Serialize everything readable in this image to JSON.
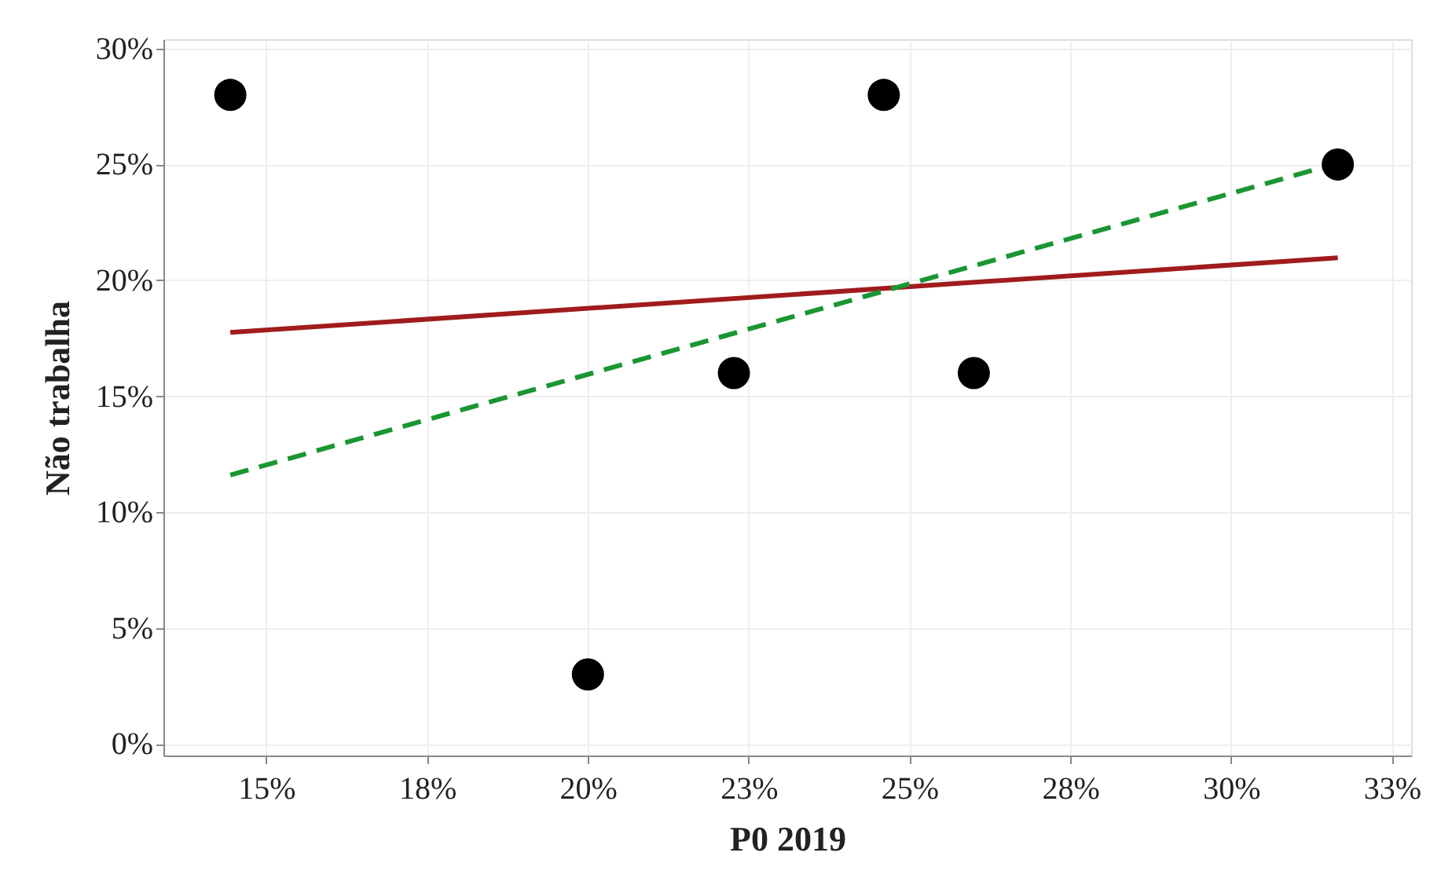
{
  "chart_data": {
    "type": "scatter",
    "xlabel": "P0 2019",
    "ylabel": "Não trabalha",
    "xlim": [
      13.4,
      32.8
    ],
    "ylim": [
      -0.5,
      30.4
    ],
    "xticks": [
      {
        "value": 15,
        "label": "15%"
      },
      {
        "value": 17.5,
        "label": "18%"
      },
      {
        "value": 20,
        "label": "20%"
      },
      {
        "value": 22.5,
        "label": "23%"
      },
      {
        "value": 25,
        "label": "25%"
      },
      {
        "value": 27.5,
        "label": "28%"
      },
      {
        "value": 30,
        "label": "30%"
      },
      {
        "value": 32.5,
        "label": "33%"
      }
    ],
    "yticks": [
      {
        "value": 0,
        "label": "0%"
      },
      {
        "value": 5,
        "label": "5%"
      },
      {
        "value": 10,
        "label": "10%"
      },
      {
        "value": 15,
        "label": "15%"
      },
      {
        "value": 20,
        "label": "20%"
      },
      {
        "value": 25,
        "label": "25%"
      },
      {
        "value": 30,
        "label": "30%"
      }
    ],
    "grid": true,
    "series": [
      {
        "color": "#000000",
        "marker": "circle",
        "x": [
          14.44,
          20.0,
          22.27,
          24.6,
          26.0,
          31.66
        ],
        "values": [
          28,
          3,
          16,
          28,
          16,
          25
        ]
      },
      {
        "type": "line",
        "color": "#a01c1c",
        "line_style": "solid",
        "marker": "none",
        "x": [
          14.44,
          31.66
        ],
        "values": [
          17.75,
          20.97
        ]
      },
      {
        "type": "line",
        "color": "#1a9632",
        "line_style": "dashed",
        "marker": "none",
        "x": [
          14.44,
          31.66
        ],
        "values": [
          11.6,
          25.05
        ]
      }
    ]
  }
}
